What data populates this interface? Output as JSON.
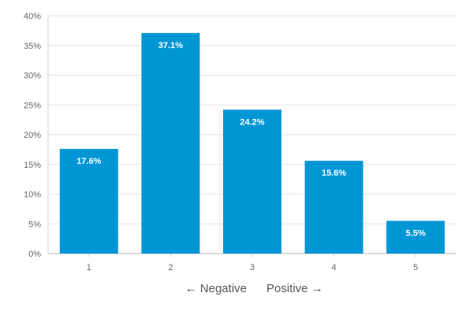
{
  "chart_data": {
    "type": "bar",
    "categories": [
      "1",
      "2",
      "3",
      "4",
      "5"
    ],
    "values": [
      17.6,
      37.1,
      24.2,
      15.6,
      5.5
    ],
    "data_labels": [
      "17.6%",
      "37.1%",
      "24.2%",
      "15.6%",
      "5.5%"
    ],
    "y_ticks": [
      "0%",
      "5%",
      "10%",
      "15%",
      "20%",
      "25%",
      "30%",
      "35%",
      "40%"
    ],
    "ylim": [
      0,
      40
    ],
    "grid": true,
    "bar_color": "#0096D6",
    "legend": "none",
    "xlabel_left": "← Negative",
    "xlabel_right": "Positive →"
  }
}
